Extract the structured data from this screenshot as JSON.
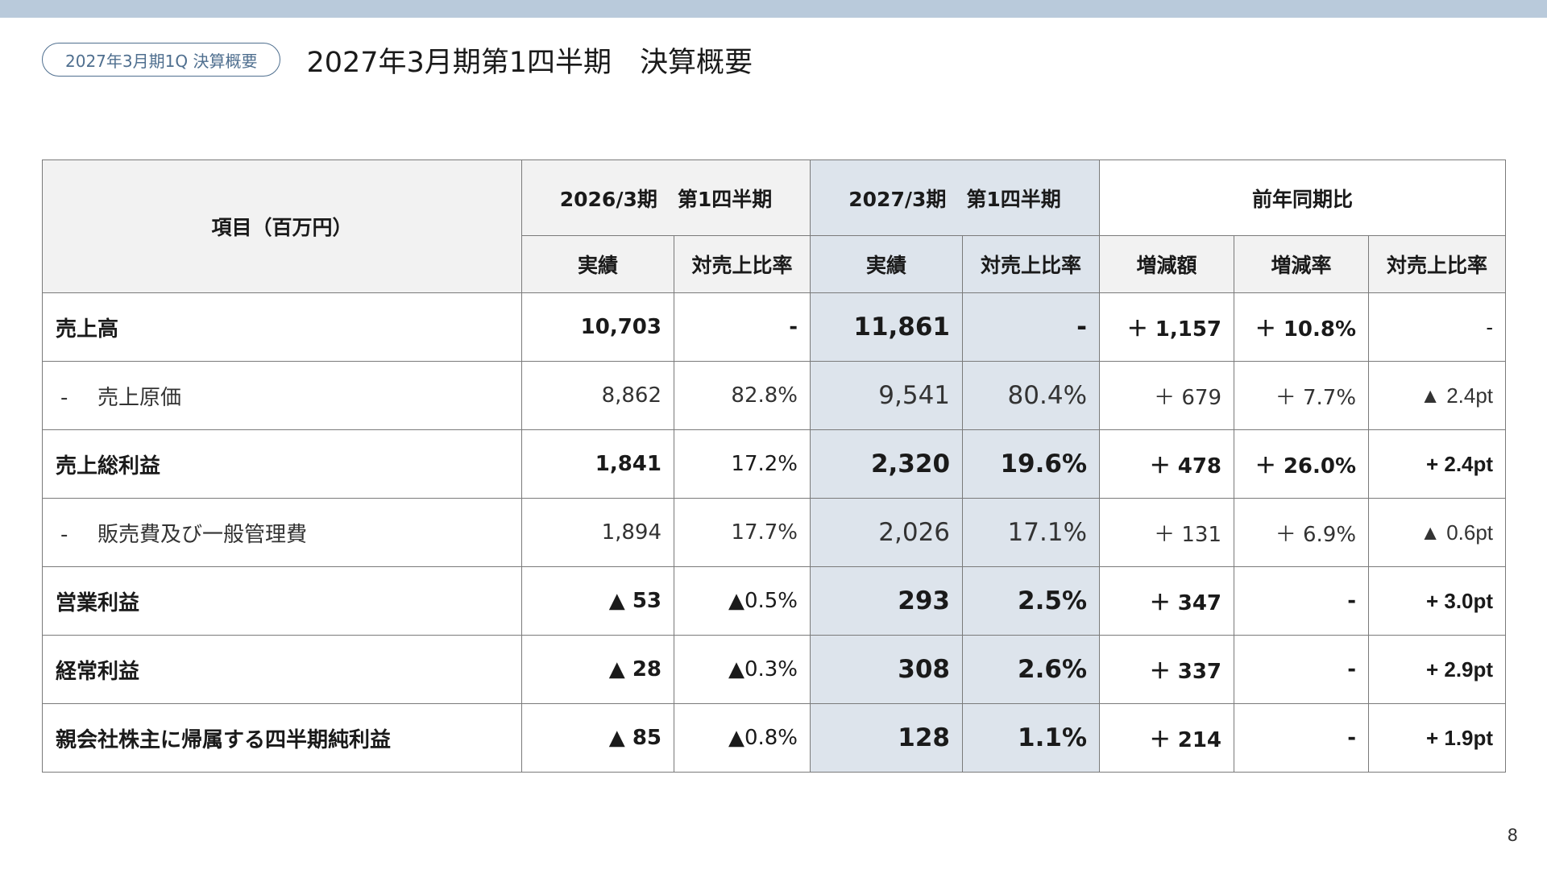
{
  "header": {
    "badge": "2027年3月期1Q 決算概要",
    "title": "2027年3月期第1四半期　決算概要"
  },
  "table": {
    "item_header": "項目（百万円）",
    "group_headers": {
      "prev": "2026/3期　第1四半期",
      "cur": "2027/3期　第1四半期",
      "yoy": "前年同期比"
    },
    "sub_headers": {
      "prev_actual": "実績",
      "prev_ratio": "対売上比率",
      "cur_actual": "実績",
      "cur_ratio": "対売上比率",
      "yoy_amount": "増減額",
      "yoy_rate": "増減率",
      "yoy_ratio": "対売上比率"
    },
    "rows": [
      {
        "label": "売上高",
        "prefix": "",
        "prev": "10,703",
        "prev_pct": "-",
        "cur": "11,861",
        "cur_pct": "-",
        "diff": "＋ 1,157",
        "rate": "＋ 10.8%",
        "pt": "-"
      },
      {
        "label": "売上原価",
        "prefix": "-",
        "prev": "8,862",
        "prev_pct": "82.8%",
        "cur": "9,541",
        "cur_pct": "80.4%",
        "diff": "＋ 679",
        "rate": "＋ 7.7%",
        "pt": "▲ 2.4pt"
      },
      {
        "label": "売上総利益",
        "prefix": "",
        "prev": "1,841",
        "prev_pct": "17.2%",
        "cur": "2,320",
        "cur_pct": "19.6%",
        "diff": "＋ 478",
        "rate": "＋ 26.0%",
        "pt": "+ 2.4pt"
      },
      {
        "label": "販売費及び一般管理費",
        "prefix": "-",
        "prev": "1,894",
        "prev_pct": "17.7%",
        "cur": "2,026",
        "cur_pct": "17.1%",
        "diff": "＋ 131",
        "rate": "＋ 6.9%",
        "pt": "▲ 0.6pt"
      },
      {
        "label": "営業利益",
        "prefix": "",
        "prev": "▲ 53",
        "prev_pct": "▲0.5%",
        "cur": "293",
        "cur_pct": "2.5%",
        "diff": "＋ 347",
        "rate": "-",
        "pt": "+ 3.0pt"
      },
      {
        "label": "経常利益",
        "prefix": "",
        "prev": "▲ 28",
        "prev_pct": "▲0.3%",
        "cur": "308",
        "cur_pct": "2.6%",
        "diff": "＋ 337",
        "rate": "-",
        "pt": "+ 2.9pt"
      },
      {
        "label": "親会社株主に帰属する四半期純利益",
        "prefix": "",
        "prev": "▲ 85",
        "prev_pct": "▲0.8%",
        "cur": "128",
        "cur_pct": "1.1%",
        "diff": "＋ 214",
        "rate": "-",
        "pt": "+ 1.9pt"
      }
    ]
  },
  "page_number": "8"
}
